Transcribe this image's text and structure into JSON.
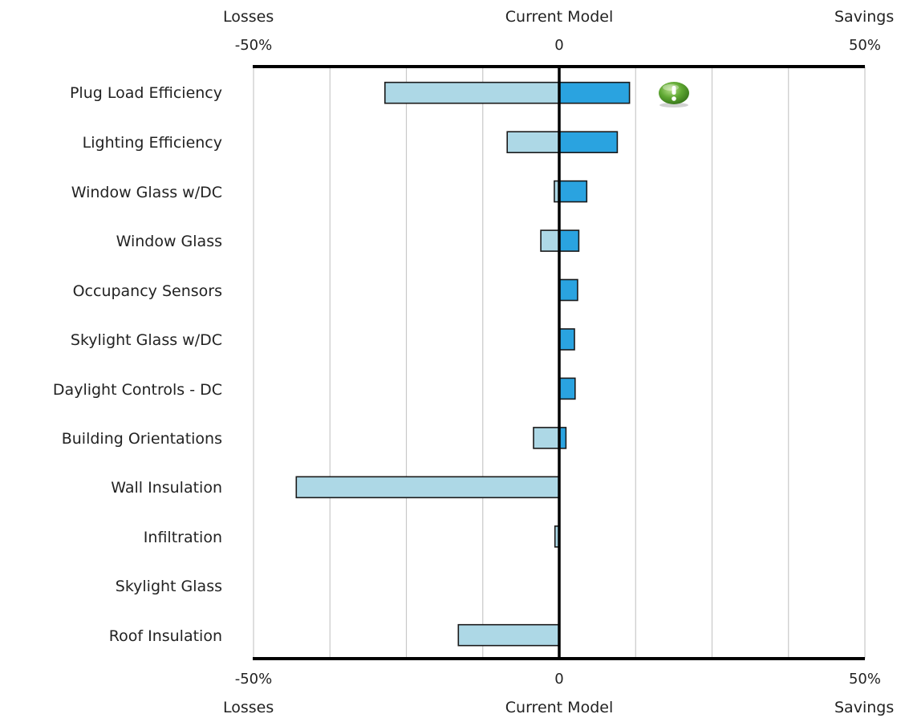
{
  "chart_data": {
    "type": "bar",
    "orientation": "horizontal",
    "layout": "tornado",
    "xlim": [
      -50,
      50
    ],
    "tick_values": [
      -50,
      0,
      50
    ],
    "tick_labels": [
      "-50%",
      "0",
      "50%"
    ],
    "grid": true,
    "axis_headers": {
      "left": "Losses",
      "center": "Current Model",
      "right": "Savings"
    },
    "categories": [
      "Plug Load Efficiency",
      "Lighting Efficiency",
      "Window Glass w/DC",
      "Window Glass",
      "Occupancy Sensors",
      "Skylight Glass w/DC",
      "Daylight Controls - DC",
      "Building Orientations",
      "Wall Insulation",
      "Infiltration",
      "Skylight Glass",
      "Roof Insulation"
    ],
    "series": [
      {
        "color": "#add8e6",
        "values": [
          -28.5,
          -8.5,
          -0.8,
          -3.0,
          0,
          0,
          0,
          -4.2,
          -43.0,
          -0.7,
          0,
          -16.5
        ]
      },
      {
        "color": "#2aa3e0",
        "values": [
          11.5,
          9.5,
          4.5,
          3.2,
          3.0,
          2.5,
          2.6,
          1.1,
          0,
          0,
          0,
          0
        ]
      }
    ],
    "annotation_icon": "exclamation-alert-icon"
  },
  "colors": {
    "loss_fill": "#add8e6",
    "saving_fill": "#2aa3e0",
    "bar_stroke": "#1a1a1a",
    "grid": "#c8c8c8",
    "alert_green": "#5fa832"
  }
}
